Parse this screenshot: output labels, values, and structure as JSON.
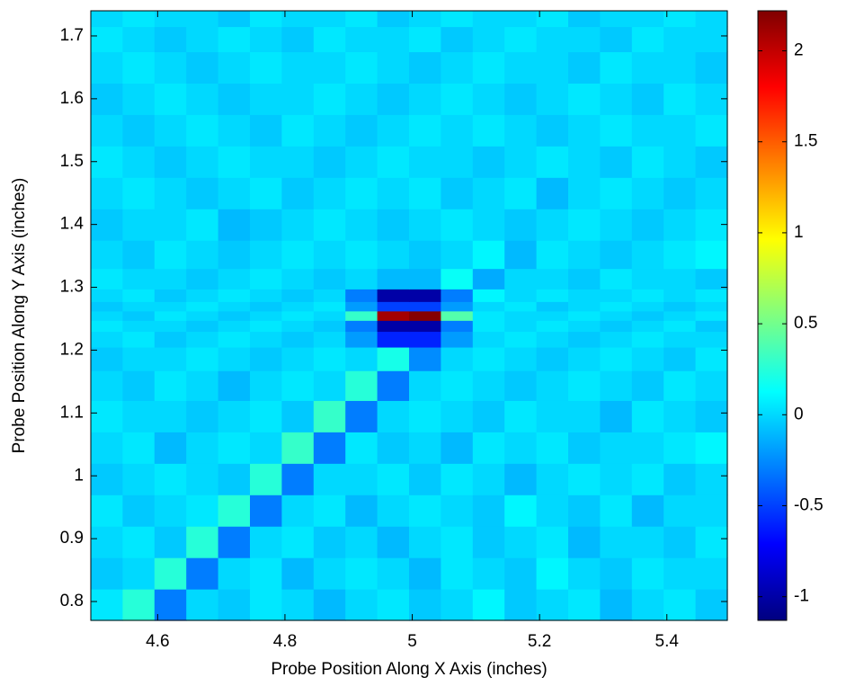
{
  "chart_data": {
    "type": "heatmap",
    "xlabel": "Probe Position Along X Axis (inches)",
    "ylabel": "Probe Position Along Y Axis (inches)",
    "colormap": "jet",
    "xlim": [
      4.495,
      5.495
    ],
    "xticks": [
      4.6,
      4.8,
      5,
      5.2,
      5.4
    ],
    "ylim": [
      0.77,
      1.74
    ],
    "yticks": [
      0.8,
      0.9,
      1,
      1.1,
      1.2,
      1.3,
      1.4,
      1.5,
      1.6,
      1.7
    ],
    "clim": [
      -1.13,
      2.22
    ],
    "cticks": [
      -1,
      -0.5,
      0,
      0.5,
      1,
      1.5,
      2
    ],
    "x": [
      4.52,
      4.57,
      4.62,
      4.67,
      4.72,
      4.77,
      4.82,
      4.87,
      4.92,
      4.97,
      5.02,
      5.07,
      5.12,
      5.17,
      5.22,
      5.27,
      5.32,
      5.37,
      5.42,
      5.47
    ],
    "y": [
      0.795,
      0.845,
      0.895,
      0.945,
      0.995,
      1.045,
      1.095,
      1.145,
      1.19,
      1.22,
      1.24,
      1.255,
      1.27,
      1.285,
      1.31,
      1.35,
      1.4,
      1.45,
      1.5,
      1.55,
      1.6,
      1.65,
      1.7,
      1.73
    ],
    "z": [
      [
        0.05,
        0.25,
        -0.3,
        0,
        -0.05,
        0.05,
        0,
        -0.1,
        0,
        0.05,
        -0.05,
        0,
        0.1,
        -0.05,
        0,
        0.05,
        -0.1,
        0,
        0.05,
        -0.05
      ],
      [
        -0.05,
        0,
        0.25,
        -0.3,
        0,
        0.05,
        -0.1,
        0,
        0.05,
        0,
        -0.1,
        0.05,
        0,
        -0.05,
        0.1,
        0,
        -0.05,
        0.05,
        0,
        0
      ],
      [
        0,
        0.05,
        -0.05,
        0.25,
        -0.3,
        0,
        0.05,
        -0.05,
        0,
        -0.1,
        0,
        0.05,
        -0.05,
        0,
        0.05,
        -0.1,
        0,
        0,
        -0.05,
        0.05
      ],
      [
        0.05,
        -0.05,
        0,
        0.05,
        0.25,
        -0.3,
        0,
        0.05,
        -0.1,
        0,
        0.05,
        0,
        -0.05,
        0.1,
        0,
        -0.05,
        0.05,
        -0.1,
        0,
        0
      ],
      [
        -0.05,
        0,
        0.05,
        0,
        -0.05,
        0.25,
        -0.3,
        0,
        0,
        0.05,
        -0.05,
        0.05,
        0,
        -0.1,
        0,
        0.05,
        0,
        0.05,
        -0.05,
        0
      ],
      [
        0,
        0.05,
        -0.1,
        0,
        0.05,
        0,
        0.3,
        -0.3,
        0.05,
        -0.05,
        0,
        -0.1,
        0.05,
        0,
        0.05,
        -0.05,
        0,
        0,
        0.05,
        0.1
      ],
      [
        0.05,
        0,
        0,
        -0.05,
        0,
        0.05,
        -0.05,
        0.3,
        -0.3,
        0,
        0.05,
        0,
        -0.05,
        0.05,
        0,
        0,
        -0.1,
        0.05,
        0,
        -0.05
      ],
      [
        0,
        -0.05,
        0.05,
        0,
        -0.1,
        0,
        0.05,
        0,
        0.25,
        -0.3,
        0,
        0.05,
        0,
        -0.05,
        0,
        0.05,
        0,
        -0.05,
        0.05,
        0
      ],
      [
        -0.05,
        0,
        0,
        0.05,
        0,
        -0.05,
        0,
        0.05,
        0,
        0.2,
        -0.25,
        0,
        0.05,
        0,
        -0.05,
        0,
        0.05,
        0,
        -0.05,
        0.05
      ],
      [
        0,
        0.05,
        -0.05,
        0,
        0.05,
        0,
        -0.05,
        0,
        -0.2,
        -0.6,
        -0.6,
        -0.2,
        0,
        0.05,
        0,
        -0.05,
        0,
        0.05,
        0,
        0
      ],
      [
        0.05,
        0,
        0,
        -0.05,
        0,
        0.05,
        0,
        -0.05,
        -0.3,
        -1.0,
        -1.0,
        -0.3,
        0.05,
        0,
        0.05,
        0,
        -0.05,
        0,
        0.05,
        -0.05
      ],
      [
        0,
        -0.05,
        0.05,
        0,
        -0.05,
        0,
        0.05,
        0,
        0.3,
        2.1,
        2.2,
        0.4,
        0.05,
        0,
        0,
        0.05,
        0,
        -0.05,
        0,
        0.05
      ],
      [
        -0.05,
        0,
        0,
        0.05,
        0,
        -0.05,
        0,
        0.05,
        -0.2,
        -0.5,
        -0.5,
        -0.2,
        0,
        0.05,
        -0.05,
        0,
        0.05,
        0,
        -0.05,
        0
      ],
      [
        0,
        0.05,
        -0.05,
        0,
        0.05,
        0,
        -0.05,
        0,
        -0.3,
        -1.0,
        -1.0,
        -0.3,
        0.1,
        0,
        0.05,
        0,
        0,
        0.05,
        0,
        0.05
      ],
      [
        0.05,
        0,
        0,
        -0.05,
        0,
        0.05,
        0,
        -0.05,
        0,
        -0.1,
        -0.1,
        0.15,
        -0.15,
        0,
        0,
        -0.05,
        0.05,
        0,
        0,
        -0.05
      ],
      [
        0,
        -0.05,
        0.05,
        0,
        -0.05,
        0,
        0.05,
        0,
        0.05,
        0,
        -0.05,
        0,
        0.1,
        -0.1,
        0.05,
        0,
        -0.05,
        0,
        0.05,
        0.1
      ],
      [
        -0.05,
        0,
        0,
        0.05,
        -0.1,
        -0.05,
        0,
        0.05,
        0,
        -0.05,
        0,
        0.05,
        0,
        -0.05,
        0,
        0.05,
        0,
        -0.05,
        0,
        0.05
      ],
      [
        0,
        0.05,
        0,
        -0.05,
        0,
        0.05,
        -0.05,
        0,
        0.05,
        0,
        0.05,
        -0.05,
        0,
        0.05,
        -0.1,
        0,
        0.05,
        0,
        -0.05,
        0
      ],
      [
        0.05,
        0,
        -0.05,
        0,
        0.05,
        0,
        0,
        -0.05,
        0,
        0.05,
        0,
        0,
        -0.05,
        0,
        0.05,
        0,
        -0.05,
        0.05,
        0,
        -0.05
      ],
      [
        0,
        -0.05,
        0,
        0.05,
        0,
        -0.05,
        0.05,
        0,
        -0.05,
        0,
        0.05,
        0,
        0.05,
        0,
        -0.05,
        0,
        0.05,
        0,
        0,
        0.05
      ],
      [
        -0.05,
        0,
        0.05,
        0,
        -0.05,
        0,
        0,
        0.05,
        0,
        -0.05,
        0,
        0.05,
        0,
        -0.05,
        0,
        0.05,
        0,
        -0.05,
        0.05,
        0
      ],
      [
        0,
        0.05,
        0,
        -0.05,
        0,
        0.05,
        0,
        0,
        0.05,
        0,
        -0.05,
        0,
        0.05,
        0,
        0,
        -0.05,
        0.05,
        0,
        0,
        -0.05
      ],
      [
        0.05,
        0,
        -0.05,
        0,
        0.05,
        0,
        -0.05,
        0.05,
        0,
        0,
        0.05,
        -0.05,
        0,
        0.05,
        0,
        0,
        -0.05,
        0.05,
        0,
        0
      ],
      [
        0,
        0.05,
        0,
        0,
        -0.05,
        0.05,
        0,
        0,
        0.05,
        -0.05,
        0,
        0.05,
        0,
        0,
        0.05,
        -0.05,
        0,
        0,
        0.05,
        0
      ]
    ]
  }
}
